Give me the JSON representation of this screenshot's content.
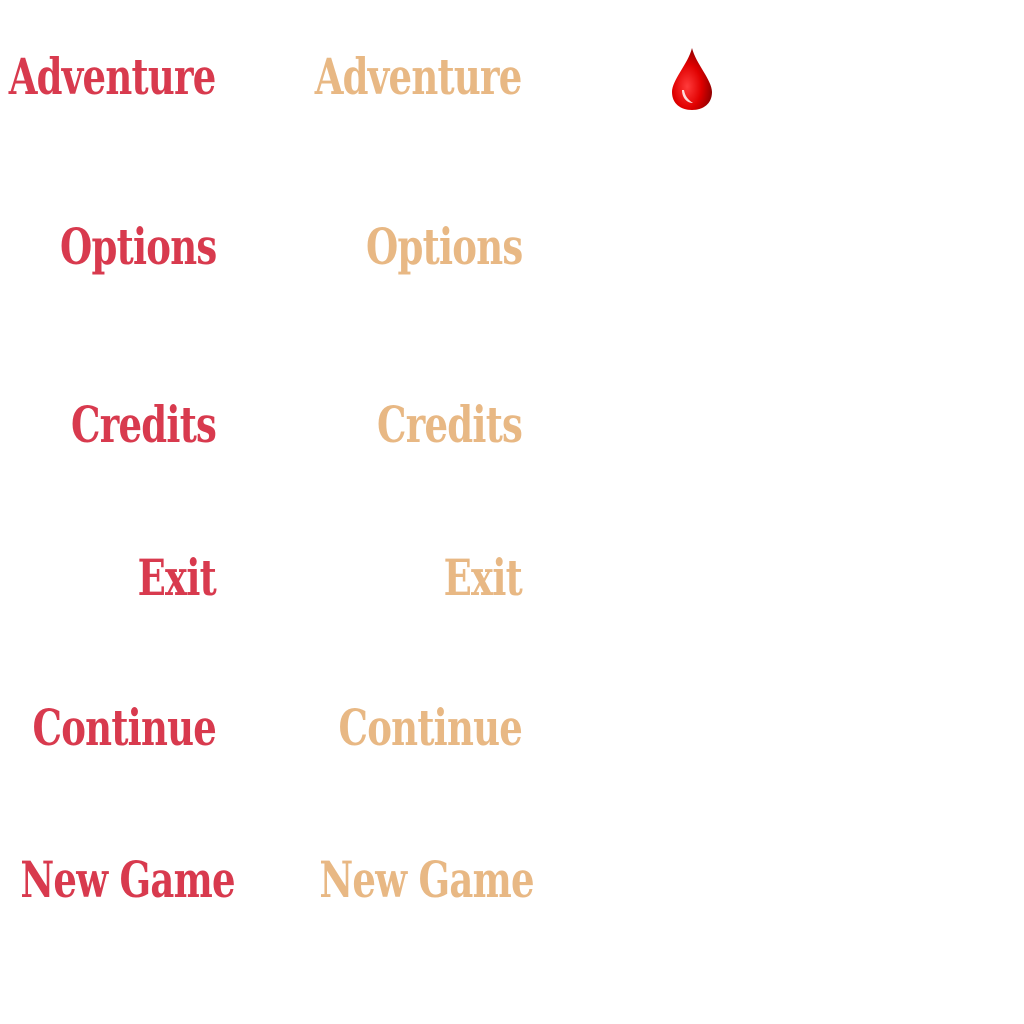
{
  "menu": {
    "colors": {
      "normal": "#d83a4e",
      "hover": "#e8b884",
      "drop": "#e00000"
    },
    "cursor_icon": "blood-drop-icon",
    "items": [
      {
        "id": "adventure",
        "label": "Adventure"
      },
      {
        "id": "options",
        "label": "Options"
      },
      {
        "id": "credits",
        "label": "Credits"
      },
      {
        "id": "exit",
        "label": "Exit"
      },
      {
        "id": "continue",
        "label": "Continue"
      },
      {
        "id": "new-game",
        "label": "New Game"
      }
    ]
  }
}
